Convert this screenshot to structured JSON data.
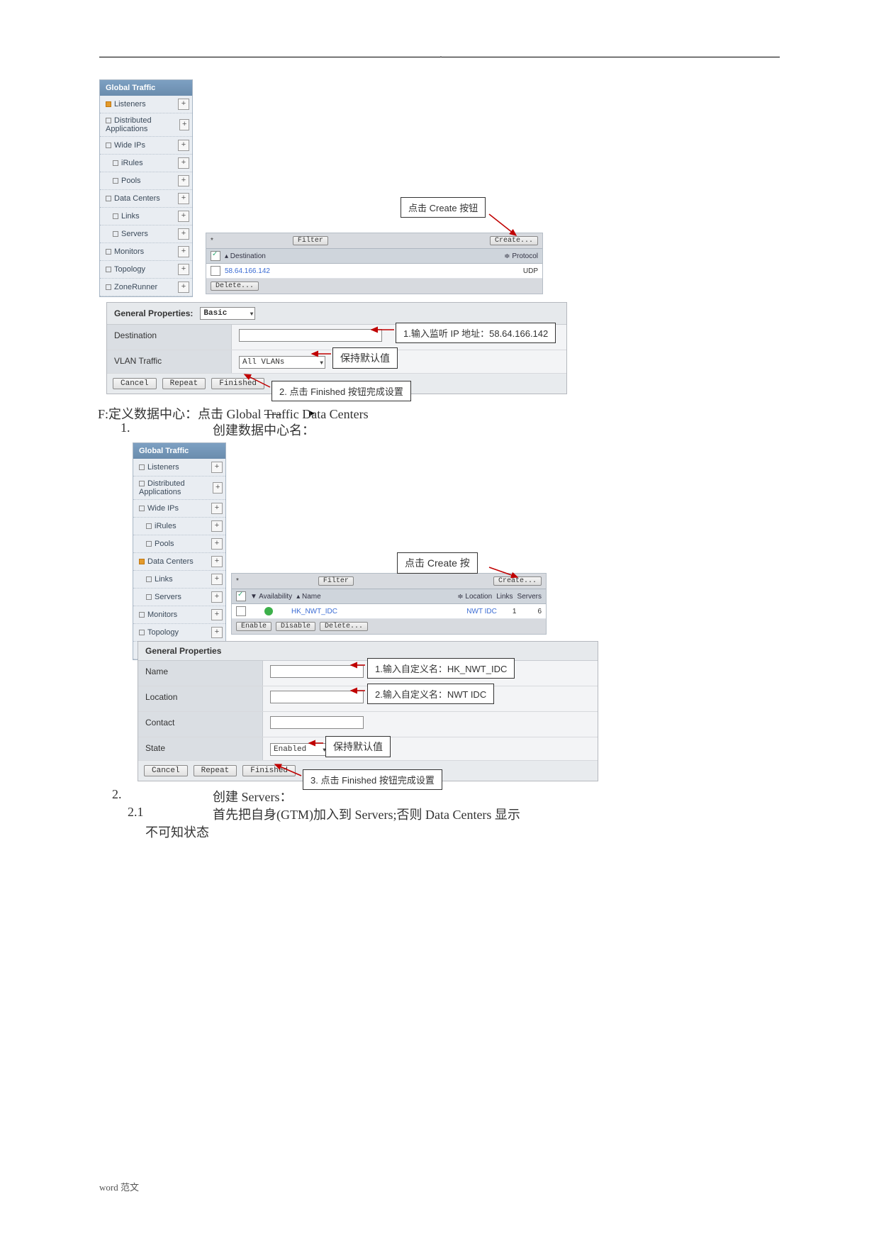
{
  "sidebar": {
    "header": "Global Traffic",
    "items": [
      {
        "label": "Listeners",
        "indent": 0,
        "orange": true
      },
      {
        "label": "Distributed Applications",
        "indent": 0
      },
      {
        "label": "Wide IPs",
        "indent": 0
      },
      {
        "label": "iRules",
        "indent": 1
      },
      {
        "label": "Pools",
        "indent": 1
      },
      {
        "label": "Data Centers",
        "indent": 0
      },
      {
        "label": "Links",
        "indent": 1
      },
      {
        "label": "Servers",
        "indent": 1
      },
      {
        "label": "Monitors",
        "indent": 0
      },
      {
        "label": "Topology",
        "indent": 0
      },
      {
        "label": "ZoneRunner",
        "indent": 0
      }
    ]
  },
  "sidebar2": {
    "items": [
      {
        "label": "Listeners",
        "indent": 0
      },
      {
        "label": "Distributed Applications",
        "indent": 0
      },
      {
        "label": "Wide IPs",
        "indent": 0
      },
      {
        "label": "iRules",
        "indent": 1
      },
      {
        "label": "Pools",
        "indent": 1
      },
      {
        "label": "Data Centers",
        "indent": 0,
        "orange": true
      },
      {
        "label": "Links",
        "indent": 1
      },
      {
        "label": "Servers",
        "indent": 1
      },
      {
        "label": "Monitors",
        "indent": 0
      },
      {
        "label": "Topology",
        "indent": 0
      },
      {
        "label": "ZoneRunner",
        "indent": 0
      }
    ]
  },
  "pane1": {
    "filter_star": "*",
    "filter_btn": "Filter",
    "create_btn": "Create...",
    "head_dest": "▴ Destination",
    "head_proto": "≑ Protocol",
    "row_dest": "58.64.166.142",
    "row_proto": "UDP",
    "delete_btn": "Delete..."
  },
  "form1": {
    "title": "General Properties:",
    "mode": "Basic",
    "dest_label": "Destination",
    "vlan_label": "VLAN Traffic",
    "vlan_value": "All VLANs",
    "cancel": "Cancel",
    "repeat": "Repeat",
    "finished": "Finished"
  },
  "pane2": {
    "filter_star": "*",
    "filter_btn": "Filter",
    "create_btn": "Create...",
    "h_avail": "▼ Availability",
    "h_name": "▴ Name",
    "h_loc": "≑ Location",
    "h_links": "Links",
    "h_srv": "Servers",
    "row_name": "HK_NWT_IDC",
    "row_loc": "NWT IDC",
    "row_links": "1",
    "row_srv": "6",
    "enable": "Enable",
    "disable": "Disable",
    "delete": "Delete..."
  },
  "form2": {
    "title": "General Properties",
    "name_label": "Name",
    "loc_label": "Location",
    "contact_label": "Contact",
    "state_label": "State",
    "state_value": "Enabled",
    "cancel": "Cancel",
    "repeat": "Repeat",
    "finished": "Finished"
  },
  "callouts": {
    "c1": "点击 Create 按钮",
    "c2": "1.输入监听 IP 地址：58.64.166.142",
    "c3": "保持默认值",
    "c4": "2.  点击 Finished 按钮完成设置",
    "c5": "点击 Create 按",
    "c6": "1.输入自定义名：HK_NWT_IDC",
    "c7": "2.输入自定义名：NWT IDC",
    "c8": "保持默认值",
    "c9": "3.  点击 Finished 按钮完成设置"
  },
  "text": {
    "F": "F:定义数据中心：点击 Global ",
    "F2": "Tra",
    "F3": "ffic Data Centers",
    "L1": "1.",
    "L1b": "创建数据中心名：",
    "L2": "2.",
    "L2b": "创建 Servers：",
    "L21": "2.1",
    "L21b": "首先把自身(GTM)加入到 Servers;否则 Data Centers 显示",
    "L21c": "不可知状态",
    "footer": "word 范文"
  },
  "colors": {
    "link": "#3b6cd4",
    "arrow": "#c00000",
    "green": "#3cb04a"
  }
}
